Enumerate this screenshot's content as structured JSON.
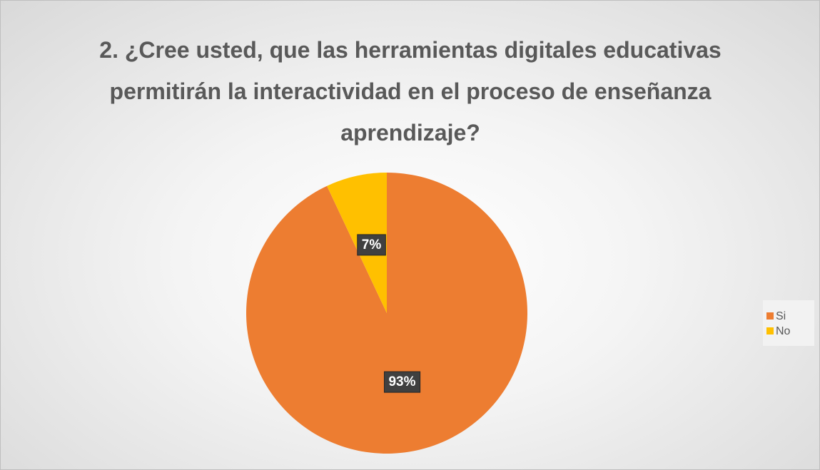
{
  "chart_data": {
    "type": "pie",
    "title": "2. ¿Cree usted, que las herramientas digitales educativas permitirán la interactividad en el proceso de enseñanza aprendizaje?",
    "categories": [
      "Si",
      "No"
    ],
    "values": [
      93,
      7
    ],
    "value_labels": [
      "93%",
      "7%"
    ],
    "colors": [
      "#ed7d31",
      "#ffc000"
    ],
    "legend": "right"
  }
}
